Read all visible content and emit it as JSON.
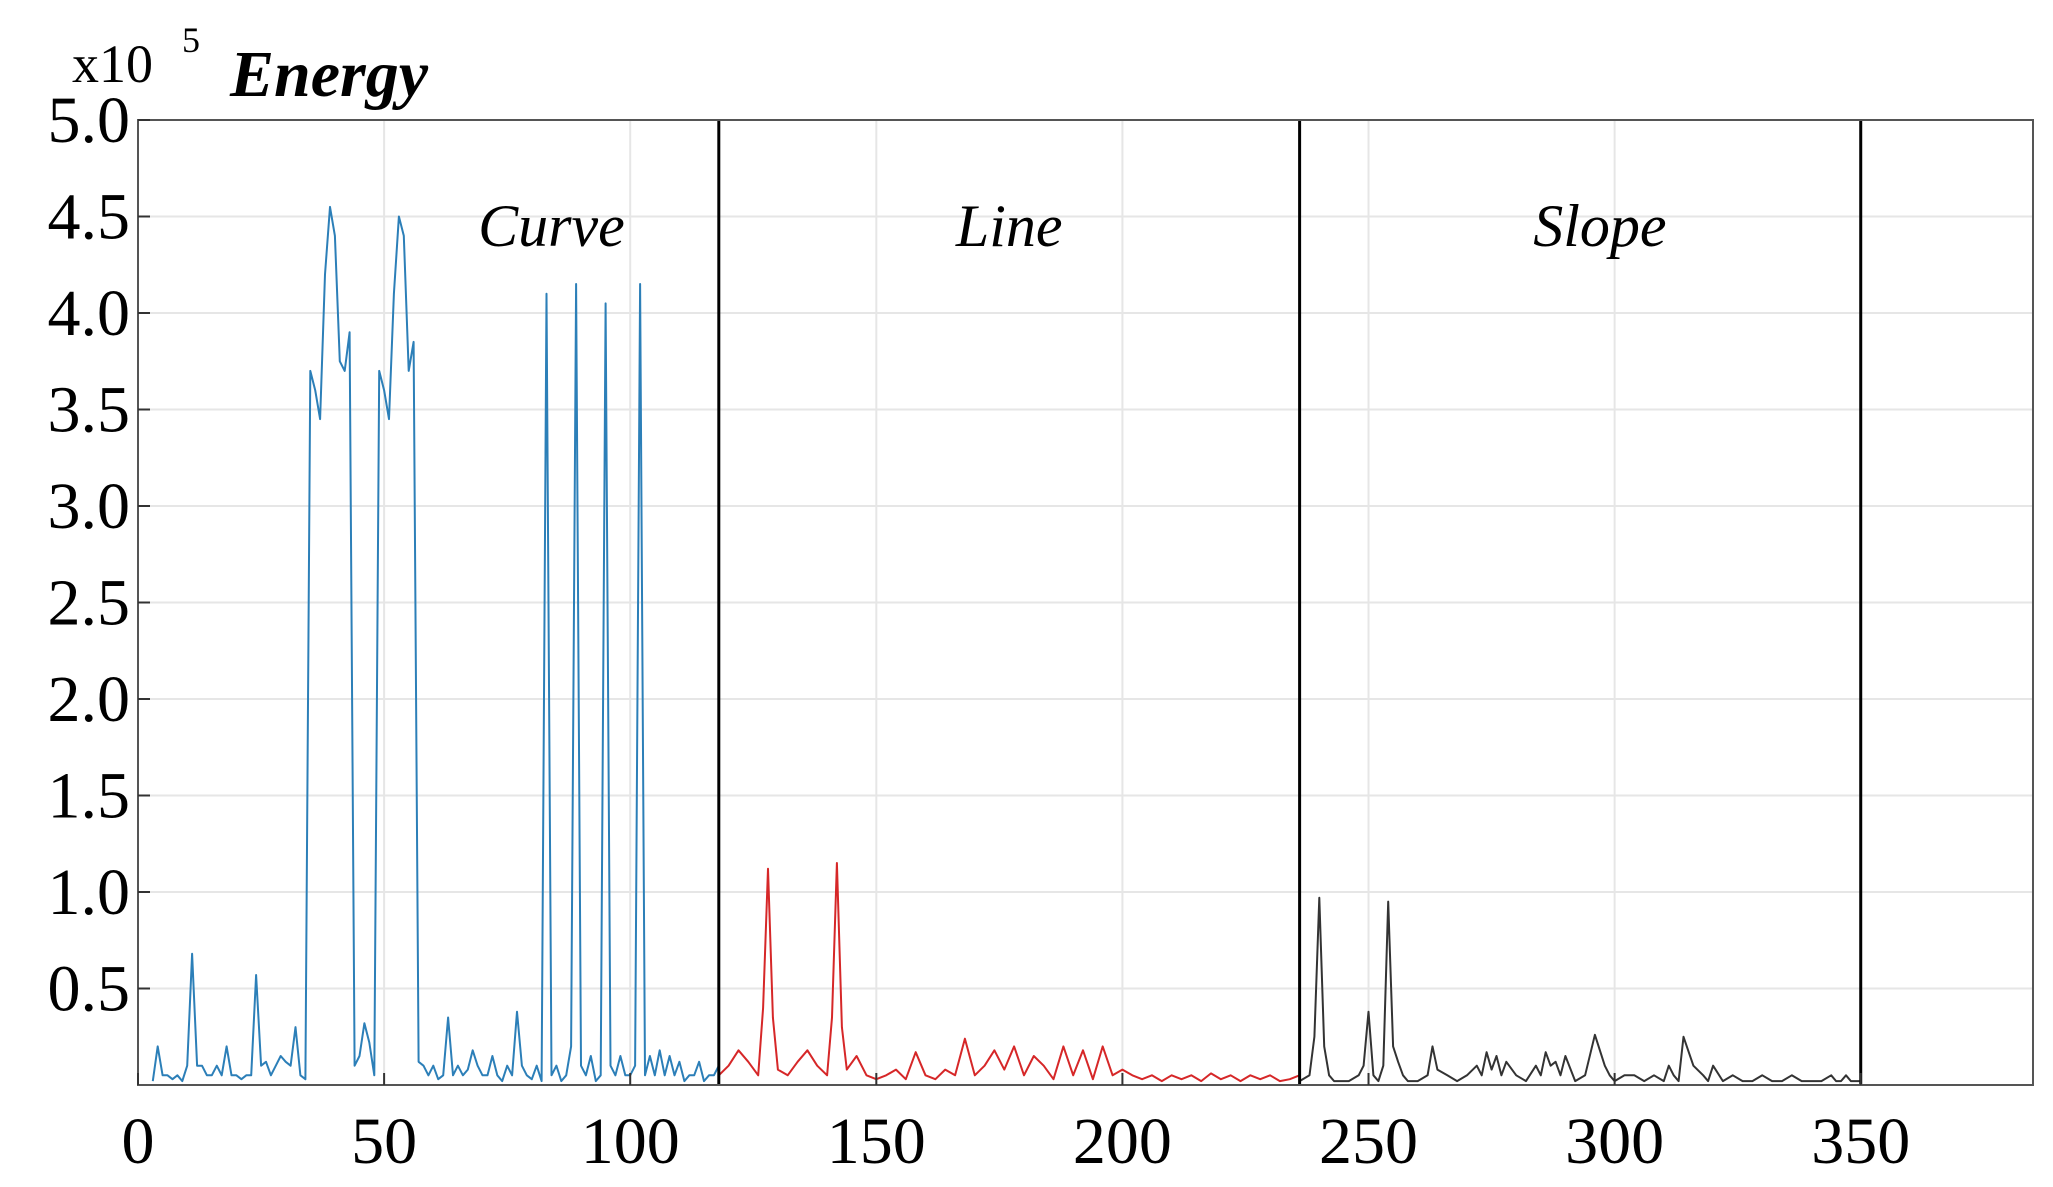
{
  "chart_data": {
    "type": "line",
    "ylabel": "Energy",
    "y_multiplier": {
      "base": "x10",
      "exponent": "5"
    },
    "xlim": [
      0,
      385
    ],
    "ylim": [
      0,
      5.0
    ],
    "x_ticks": [
      0,
      50,
      100,
      150,
      200,
      250,
      300,
      350
    ],
    "x_tick_labels": [
      "0",
      "50",
      "100",
      "150",
      "200",
      "250",
      "300",
      "350"
    ],
    "y_ticks": [
      0.5,
      1.0,
      1.5,
      2.0,
      2.5,
      3.0,
      3.5,
      4.0,
      4.5,
      5.0
    ],
    "y_tick_labels": [
      "0.5",
      "1.0",
      "1.5",
      "2.0",
      "2.5",
      "3.0",
      "3.5",
      "4.0",
      "4.5",
      "5.0"
    ],
    "grid": true,
    "dividers": [
      118,
      236,
      350
    ],
    "regions": [
      {
        "label": "Curve",
        "x_center": 84,
        "y": 4.45
      },
      {
        "label": "Line",
        "x_center": 177,
        "y": 4.45
      },
      {
        "label": "Slope",
        "x_center": 297,
        "y": 4.45
      }
    ],
    "colors": {
      "curve": "#2c7fb8",
      "line": "#d62728",
      "slope": "#333333",
      "grid": "#e6e6e6",
      "axis": "#000000"
    },
    "series": [
      {
        "color": "#2c7fb8",
        "x": [
          3,
          4,
          5,
          6,
          7,
          8,
          9,
          10,
          11,
          12,
          13,
          14,
          15,
          16,
          17,
          18,
          19,
          20,
          21,
          22,
          23,
          24,
          25,
          26,
          27,
          28,
          29,
          30,
          31,
          32,
          33,
          34,
          35,
          36,
          37,
          38,
          39,
          40,
          41,
          42,
          43,
          44,
          45,
          46,
          47,
          48,
          49,
          50,
          51,
          52,
          53,
          54,
          55,
          56,
          57,
          58,
          59,
          60,
          61,
          62,
          63,
          64,
          65,
          66,
          67,
          68,
          69,
          70,
          71,
          72,
          73,
          74,
          75,
          76,
          77,
          78,
          79,
          80,
          81,
          82,
          83,
          84,
          85,
          86,
          87,
          88,
          89,
          90,
          91,
          92,
          93,
          94,
          95,
          96,
          97,
          98,
          99,
          100,
          101,
          102,
          103,
          104,
          105,
          106,
          107,
          108,
          109,
          110,
          111,
          112,
          113,
          114,
          115,
          116,
          117,
          118
        ],
        "values": [
          0.02,
          0.2,
          0.05,
          0.05,
          0.03,
          0.05,
          0.02,
          0.1,
          0.68,
          0.1,
          0.1,
          0.05,
          0.05,
          0.1,
          0.05,
          0.2,
          0.05,
          0.05,
          0.03,
          0.05,
          0.05,
          0.57,
          0.1,
          0.12,
          0.05,
          0.1,
          0.15,
          0.12,
          0.1,
          0.3,
          0.05,
          0.03,
          3.7,
          3.6,
          3.45,
          4.2,
          4.55,
          4.4,
          3.75,
          3.7,
          3.9,
          0.1,
          0.15,
          0.32,
          0.22,
          0.05,
          3.7,
          3.6,
          3.45,
          4.1,
          4.5,
          4.4,
          3.7,
          3.85,
          0.12,
          0.1,
          0.05,
          0.1,
          0.03,
          0.05,
          0.35,
          0.05,
          0.1,
          0.05,
          0.08,
          0.18,
          0.1,
          0.05,
          0.05,
          0.15,
          0.05,
          0.02,
          0.1,
          0.05,
          0.38,
          0.1,
          0.05,
          0.03,
          0.1,
          0.02,
          4.1,
          0.05,
          0.1,
          0.02,
          0.05,
          0.2,
          4.15,
          0.1,
          0.05,
          0.15,
          0.02,
          0.05,
          4.05,
          0.1,
          0.05,
          0.15,
          0.05,
          0.05,
          0.1,
          4.15,
          0.05,
          0.15,
          0.05,
          0.18,
          0.05,
          0.15,
          0.05,
          0.12,
          0.02,
          0.05,
          0.05,
          0.12,
          0.02,
          0.05,
          0.05,
          0.1
        ]
      },
      {
        "color": "#d62728",
        "x": [
          118,
          120,
          122,
          124,
          126,
          127,
          128,
          129,
          130,
          132,
          134,
          136,
          138,
          140,
          141,
          142,
          143,
          144,
          146,
          148,
          150,
          152,
          154,
          156,
          158,
          160,
          162,
          164,
          166,
          168,
          170,
          172,
          174,
          176,
          178,
          180,
          182,
          184,
          186,
          188,
          190,
          192,
          194,
          196,
          198,
          200,
          202,
          204,
          206,
          208,
          210,
          212,
          214,
          216,
          218,
          220,
          222,
          224,
          226,
          228,
          230,
          232,
          234,
          236
        ],
        "values": [
          0.05,
          0.1,
          0.18,
          0.12,
          0.05,
          0.4,
          1.12,
          0.35,
          0.08,
          0.05,
          0.12,
          0.18,
          0.1,
          0.05,
          0.35,
          1.15,
          0.3,
          0.08,
          0.15,
          0.05,
          0.03,
          0.05,
          0.08,
          0.03,
          0.17,
          0.05,
          0.03,
          0.08,
          0.05,
          0.24,
          0.05,
          0.1,
          0.18,
          0.08,
          0.2,
          0.05,
          0.15,
          0.1,
          0.03,
          0.2,
          0.05,
          0.18,
          0.03,
          0.2,
          0.05,
          0.08,
          0.05,
          0.03,
          0.05,
          0.02,
          0.05,
          0.03,
          0.05,
          0.02,
          0.06,
          0.03,
          0.05,
          0.02,
          0.05,
          0.03,
          0.05,
          0.02,
          0.03,
          0.05
        ]
      },
      {
        "color": "#333333",
        "x": [
          236,
          238,
          239,
          240,
          241,
          242,
          243,
          244,
          246,
          248,
          249,
          250,
          251,
          252,
          253,
          254,
          255,
          256,
          257,
          258,
          260,
          262,
          263,
          264,
          266,
          268,
          270,
          272,
          273,
          274,
          275,
          276,
          277,
          278,
          280,
          282,
          284,
          285,
          286,
          287,
          288,
          289,
          290,
          292,
          294,
          296,
          298,
          299,
          300,
          302,
          304,
          306,
          308,
          310,
          311,
          312,
          313,
          314,
          316,
          318,
          319,
          320,
          322,
          324,
          326,
          328,
          330,
          332,
          334,
          336,
          338,
          340,
          342,
          344,
          345,
          346,
          347,
          348,
          350
        ],
        "values": [
          0.02,
          0.05,
          0.25,
          0.97,
          0.2,
          0.05,
          0.02,
          0.02,
          0.02,
          0.05,
          0.1,
          0.38,
          0.05,
          0.02,
          0.1,
          0.95,
          0.2,
          0.12,
          0.05,
          0.02,
          0.02,
          0.05,
          0.2,
          0.08,
          0.05,
          0.02,
          0.05,
          0.1,
          0.05,
          0.17,
          0.08,
          0.15,
          0.05,
          0.12,
          0.05,
          0.02,
          0.1,
          0.05,
          0.17,
          0.1,
          0.12,
          0.05,
          0.15,
          0.02,
          0.05,
          0.26,
          0.1,
          0.05,
          0.02,
          0.05,
          0.05,
          0.02,
          0.05,
          0.02,
          0.1,
          0.05,
          0.02,
          0.25,
          0.1,
          0.05,
          0.02,
          0.1,
          0.02,
          0.05,
          0.02,
          0.02,
          0.05,
          0.02,
          0.02,
          0.05,
          0.02,
          0.02,
          0.02,
          0.05,
          0.02,
          0.02,
          0.05,
          0.02,
          0.02
        ]
      }
    ]
  }
}
